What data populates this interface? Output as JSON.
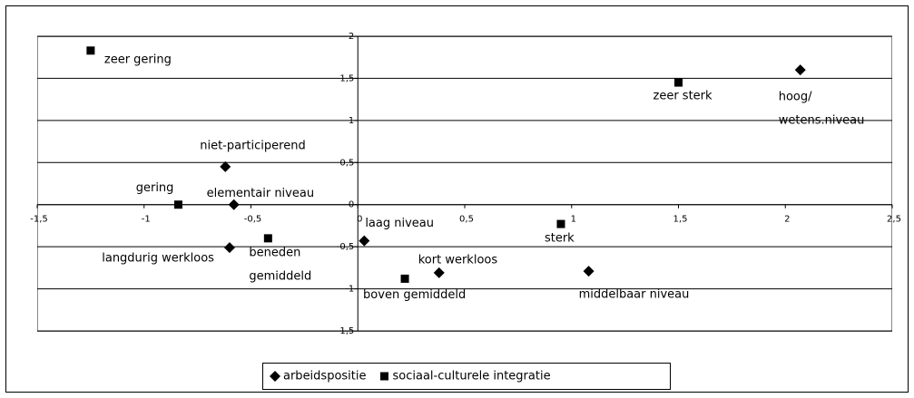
{
  "chart_data": {
    "type": "scatter",
    "xlim": [
      -1.5,
      2.5
    ],
    "ylim": [
      -1.5,
      2
    ],
    "xticks": [
      {
        "value": -1.5,
        "label": "-1,5"
      },
      -1,
      {
        "value": -0.5,
        "label": "-0,5"
      },
      0,
      {
        "value": 0.5,
        "label": "0,5"
      },
      1,
      {
        "value": 1.5,
        "label": "1,5"
      },
      2,
      {
        "value": 2.5,
        "label": "2,5"
      }
    ],
    "yticks": [
      {
        "value": -1.5,
        "label": "-1,5"
      },
      -1,
      {
        "value": -0.5,
        "label": "-0,5"
      },
      0,
      {
        "value": 0.5,
        "label": "0,5"
      },
      1,
      {
        "value": 1.5,
        "label": "1,5"
      },
      2
    ],
    "grid": true,
    "legend": "bottom",
    "series": [
      {
        "name": "arbeidspositie",
        "marker": "diamond",
        "color": "#000000",
        "x": [
          2.07,
          -0.62,
          -0.58,
          -0.6,
          0.03,
          0.38,
          1.08
        ],
        "values": [
          1.6,
          0.45,
          0,
          -0.51,
          -0.43,
          -0.81,
          -0.79
        ],
        "labels": [
          [
            "hoog/",
            "wetens.niveau"
          ],
          [
            "niet-participerend"
          ],
          [
            "elementair niveau"
          ],
          [
            "langdurig werkloos"
          ],
          [
            "laag niveau"
          ],
          [
            "kort werkloos"
          ],
          [
            "middelbaar niveau"
          ]
        ]
      },
      {
        "name": "sociaal-culturele integratie",
        "marker": "square",
        "color": "#000000",
        "x": [
          -1.25,
          1.5,
          -0.84,
          -0.42,
          0.22,
          0.95
        ],
        "values": [
          1.83,
          1.45,
          0,
          -0.4,
          -0.88,
          -0.23
        ],
        "labels": [
          [
            "zeer gering"
          ],
          [
            "zeer sterk"
          ],
          [
            "gering"
          ],
          [
            "beneden",
            "gemiddeld"
          ],
          [
            "boven gemiddeld"
          ],
          [
            "sterk"
          ]
        ]
      }
    ]
  }
}
